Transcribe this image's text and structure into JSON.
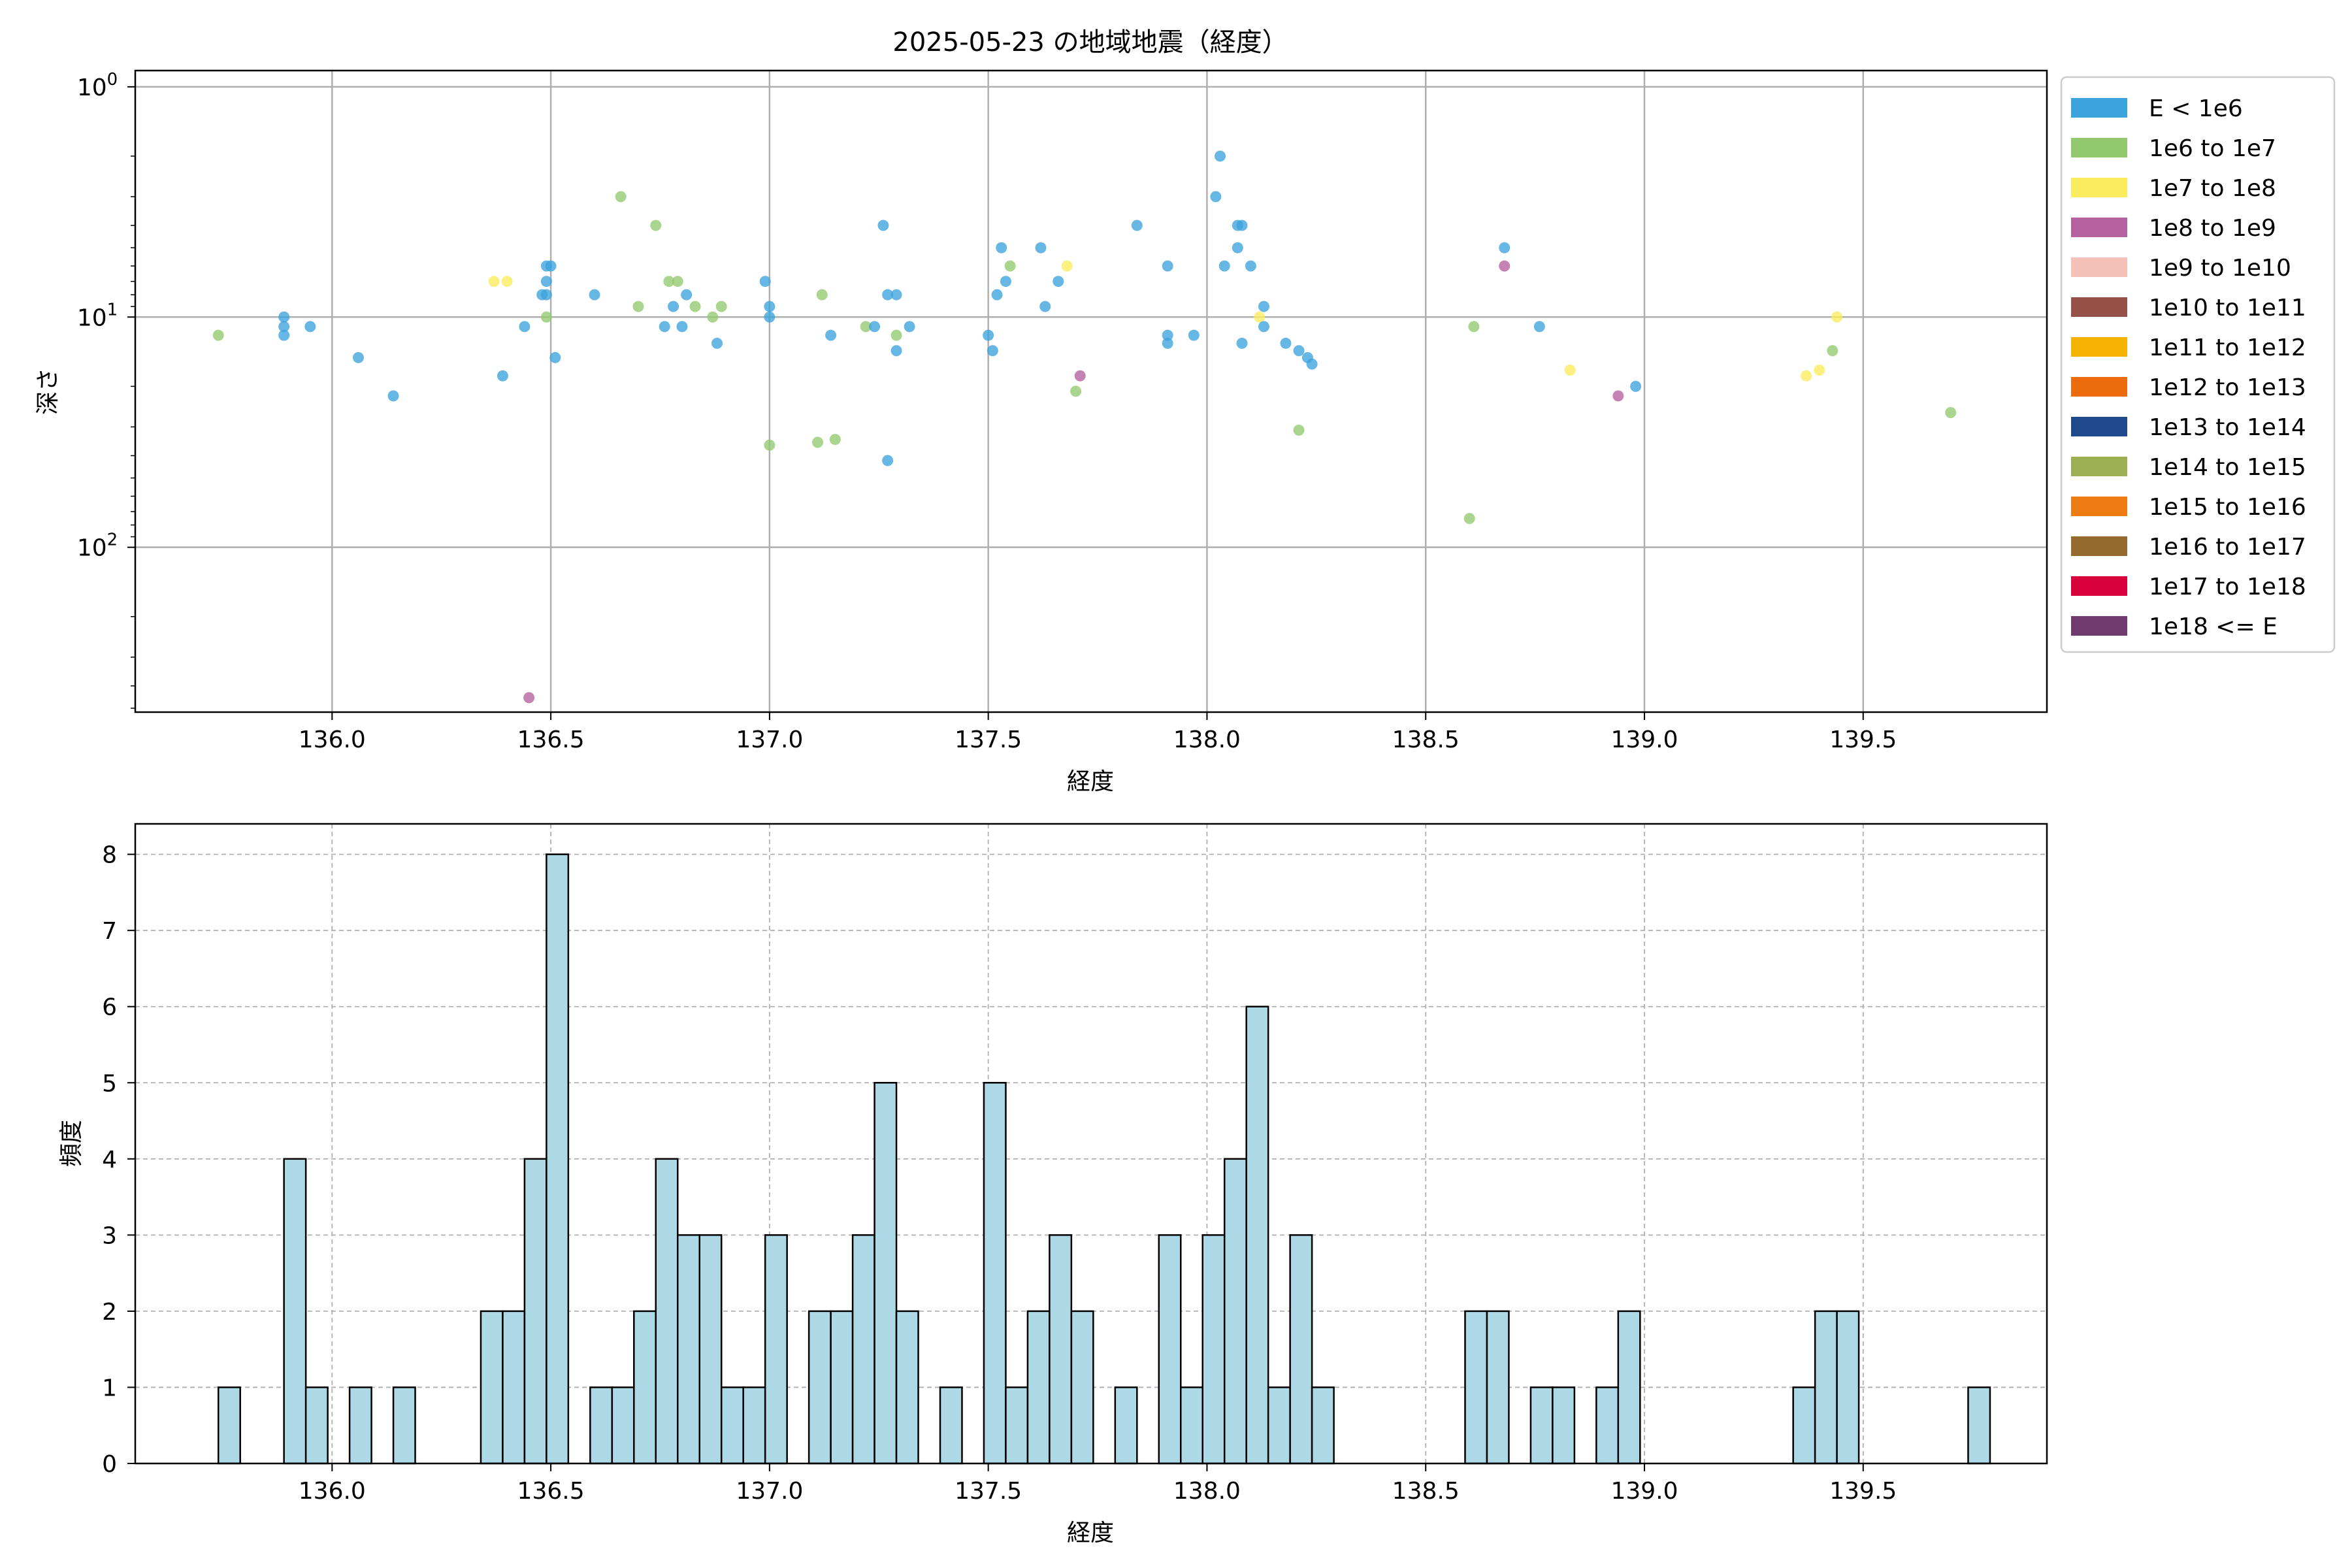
{
  "title": "2025-05-23 の地域地震（経度）",
  "chart_data": [
    {
      "type": "scatter",
      "xlabel": "経度",
      "ylabel": "深さ",
      "xlim": [
        135.55,
        139.92
      ],
      "y_scale": "log",
      "y_inverted": true,
      "ylim": [
        0.85,
        520
      ],
      "y_ticks": [
        {
          "value": 1,
          "base": "10",
          "exp": "0"
        },
        {
          "value": 10,
          "base": "10",
          "exp": "1"
        },
        {
          "value": 100,
          "base": "10",
          "exp": "2"
        }
      ],
      "x_ticks": [
        "136.0",
        "136.5",
        "137.0",
        "137.5",
        "138.0",
        "138.5",
        "139.0",
        "139.5"
      ],
      "grid": true,
      "legend_position": "outside-right",
      "legend": [
        {
          "label": "E < 1e6",
          "color": "#3ca3dc"
        },
        {
          "label": "1e6 to 1e7",
          "color": "#92c96e"
        },
        {
          "label": "1e7 to 1e8",
          "color": "#fbec5d"
        },
        {
          "label": "1e8 to 1e9",
          "color": "#b5609f"
        },
        {
          "label": "1e9 to 1e10",
          "color": "#f5c0b8"
        },
        {
          "label": "1e10 to 1e11",
          "color": "#955148"
        },
        {
          "label": "1e11 to 1e12",
          "color": "#f5b200"
        },
        {
          "label": "1e12 to 1e13",
          "color": "#ec6b0d"
        },
        {
          "label": "1e13 to 1e14",
          "color": "#1e4a8c"
        },
        {
          "label": "1e14 to 1e15",
          "color": "#9caf52"
        },
        {
          "label": "1e15 to 1e16",
          "color": "#ee7b12"
        },
        {
          "label": "1e16 to 1e17",
          "color": "#966a2e"
        },
        {
          "label": "1e17 to 1e18",
          "color": "#d9003e"
        },
        {
          "label": "1e18 <= E",
          "color": "#6f3b6e"
        }
      ],
      "points": [
        {
          "x": 135.74,
          "y": 12,
          "c": 1
        },
        {
          "x": 135.89,
          "y": 10,
          "c": 0
        },
        {
          "x": 135.89,
          "y": 11,
          "c": 0
        },
        {
          "x": 135.89,
          "y": 12,
          "c": 0
        },
        {
          "x": 135.95,
          "y": 11,
          "c": 0
        },
        {
          "x": 136.06,
          "y": 15,
          "c": 0
        },
        {
          "x": 136.14,
          "y": 22,
          "c": 0
        },
        {
          "x": 136.37,
          "y": 7,
          "c": 2
        },
        {
          "x": 136.4,
          "y": 7,
          "c": 2
        },
        {
          "x": 136.39,
          "y": 18,
          "c": 0
        },
        {
          "x": 136.44,
          "y": 11,
          "c": 0
        },
        {
          "x": 136.45,
          "y": 450,
          "c": 3
        },
        {
          "x": 136.48,
          "y": 8,
          "c": 0
        },
        {
          "x": 136.49,
          "y": 8,
          "c": 0
        },
        {
          "x": 136.49,
          "y": 7,
          "c": 0
        },
        {
          "x": 136.49,
          "y": 6,
          "c": 0
        },
        {
          "x": 136.5,
          "y": 6,
          "c": 0
        },
        {
          "x": 136.49,
          "y": 10,
          "c": 1
        },
        {
          "x": 136.51,
          "y": 15,
          "c": 0
        },
        {
          "x": 136.6,
          "y": 8,
          "c": 0
        },
        {
          "x": 136.66,
          "y": 3,
          "c": 1
        },
        {
          "x": 136.7,
          "y": 9,
          "c": 1
        },
        {
          "x": 136.74,
          "y": 4,
          "c": 1
        },
        {
          "x": 136.76,
          "y": 11,
          "c": 0
        },
        {
          "x": 136.77,
          "y": 7,
          "c": 1
        },
        {
          "x": 136.78,
          "y": 9,
          "c": 0
        },
        {
          "x": 136.79,
          "y": 7,
          "c": 1
        },
        {
          "x": 136.8,
          "y": 11,
          "c": 0
        },
        {
          "x": 136.81,
          "y": 8,
          "c": 0
        },
        {
          "x": 136.83,
          "y": 9,
          "c": 1
        },
        {
          "x": 136.87,
          "y": 10,
          "c": 1
        },
        {
          "x": 136.88,
          "y": 13,
          "c": 0
        },
        {
          "x": 136.89,
          "y": 9,
          "c": 1
        },
        {
          "x": 136.99,
          "y": 7,
          "c": 0
        },
        {
          "x": 137.0,
          "y": 9,
          "c": 0
        },
        {
          "x": 137.0,
          "y": 10,
          "c": 0
        },
        {
          "x": 137.0,
          "y": 36,
          "c": 1
        },
        {
          "x": 137.11,
          "y": 35,
          "c": 1
        },
        {
          "x": 137.12,
          "y": 8,
          "c": 1
        },
        {
          "x": 137.14,
          "y": 12,
          "c": 0
        },
        {
          "x": 137.15,
          "y": 34,
          "c": 1
        },
        {
          "x": 137.22,
          "y": 11,
          "c": 1
        },
        {
          "x": 137.24,
          "y": 11,
          "c": 0
        },
        {
          "x": 137.26,
          "y": 4,
          "c": 0
        },
        {
          "x": 137.27,
          "y": 8,
          "c": 0
        },
        {
          "x": 137.27,
          "y": 42,
          "c": 0
        },
        {
          "x": 137.29,
          "y": 8,
          "c": 0
        },
        {
          "x": 137.29,
          "y": 14,
          "c": 0
        },
        {
          "x": 137.29,
          "y": 12,
          "c": 1
        },
        {
          "x": 137.32,
          "y": 11,
          "c": 0
        },
        {
          "x": 137.5,
          "y": 12,
          "c": 0
        },
        {
          "x": 137.51,
          "y": 14,
          "c": 0
        },
        {
          "x": 137.52,
          "y": 8,
          "c": 0
        },
        {
          "x": 137.53,
          "y": 5,
          "c": 0
        },
        {
          "x": 137.54,
          "y": 7,
          "c": 0
        },
        {
          "x": 137.55,
          "y": 6,
          "c": 1
        },
        {
          "x": 137.62,
          "y": 5,
          "c": 0
        },
        {
          "x": 137.63,
          "y": 9,
          "c": 0
        },
        {
          "x": 137.66,
          "y": 7,
          "c": 0
        },
        {
          "x": 137.68,
          "y": 6,
          "c": 2
        },
        {
          "x": 137.7,
          "y": 21,
          "c": 1
        },
        {
          "x": 137.71,
          "y": 18,
          "c": 3
        },
        {
          "x": 137.84,
          "y": 4,
          "c": 0
        },
        {
          "x": 137.91,
          "y": 6,
          "c": 0
        },
        {
          "x": 137.91,
          "y": 12,
          "c": 0
        },
        {
          "x": 137.91,
          "y": 13,
          "c": 0
        },
        {
          "x": 137.97,
          "y": 12,
          "c": 0
        },
        {
          "x": 138.02,
          "y": 3,
          "c": 0
        },
        {
          "x": 138.03,
          "y": 2,
          "c": 0
        },
        {
          "x": 138.04,
          "y": 6,
          "c": 0
        },
        {
          "x": 138.07,
          "y": 4,
          "c": 0
        },
        {
          "x": 138.07,
          "y": 5,
          "c": 0
        },
        {
          "x": 138.08,
          "y": 4,
          "c": 0
        },
        {
          "x": 138.08,
          "y": 13,
          "c": 0
        },
        {
          "x": 138.1,
          "y": 6,
          "c": 0
        },
        {
          "x": 138.12,
          "y": 10,
          "c": 2
        },
        {
          "x": 138.13,
          "y": 11,
          "c": 0
        },
        {
          "x": 138.13,
          "y": 9,
          "c": 0
        },
        {
          "x": 138.18,
          "y": 13,
          "c": 0
        },
        {
          "x": 138.21,
          "y": 14,
          "c": 0
        },
        {
          "x": 138.21,
          "y": 31,
          "c": 1
        },
        {
          "x": 138.23,
          "y": 15,
          "c": 0
        },
        {
          "x": 138.24,
          "y": 16,
          "c": 0
        },
        {
          "x": 138.6,
          "y": 75,
          "c": 1
        },
        {
          "x": 138.61,
          "y": 11,
          "c": 1
        },
        {
          "x": 138.68,
          "y": 5,
          "c": 0
        },
        {
          "x": 138.68,
          "y": 6,
          "c": 3
        },
        {
          "x": 138.76,
          "y": 11,
          "c": 0
        },
        {
          "x": 138.83,
          "y": 17,
          "c": 2
        },
        {
          "x": 138.94,
          "y": 22,
          "c": 3
        },
        {
          "x": 138.98,
          "y": 20,
          "c": 0
        },
        {
          "x": 139.37,
          "y": 18,
          "c": 2
        },
        {
          "x": 139.4,
          "y": 17,
          "c": 2
        },
        {
          "x": 139.43,
          "y": 14,
          "c": 1
        },
        {
          "x": 139.44,
          "y": 10,
          "c": 2
        },
        {
          "x": 139.7,
          "y": 26,
          "c": 1
        }
      ]
    },
    {
      "type": "bar",
      "xlabel": "経度",
      "ylabel": "頻度",
      "xlim": [
        135.55,
        139.92
      ],
      "ylim": [
        0,
        8.4
      ],
      "bin_width": 0.05,
      "y_ticks": [
        "0",
        "1",
        "2",
        "3",
        "4",
        "5",
        "6",
        "7",
        "8"
      ],
      "x_ticks": [
        "136.0",
        "136.5",
        "137.0",
        "137.5",
        "138.0",
        "138.5",
        "139.0",
        "139.5"
      ],
      "grid": true,
      "bar_color": "#add8e6",
      "bins": [
        {
          "x0": 135.74,
          "count": 1
        },
        {
          "x0": 135.89,
          "count": 4
        },
        {
          "x0": 135.94,
          "count": 1
        },
        {
          "x0": 136.04,
          "count": 1
        },
        {
          "x0": 136.14,
          "count": 1
        },
        {
          "x0": 136.34,
          "count": 2
        },
        {
          "x0": 136.39,
          "count": 2
        },
        {
          "x0": 136.44,
          "count": 4
        },
        {
          "x0": 136.49,
          "count": 8
        },
        {
          "x0": 136.59,
          "count": 1
        },
        {
          "x0": 136.64,
          "count": 1
        },
        {
          "x0": 136.69,
          "count": 2
        },
        {
          "x0": 136.74,
          "count": 4
        },
        {
          "x0": 136.79,
          "count": 3
        },
        {
          "x0": 136.84,
          "count": 3
        },
        {
          "x0": 136.89,
          "count": 1
        },
        {
          "x0": 136.94,
          "count": 1
        },
        {
          "x0": 136.99,
          "count": 3
        },
        {
          "x0": 137.09,
          "count": 2
        },
        {
          "x0": 137.14,
          "count": 2
        },
        {
          "x0": 137.19,
          "count": 3
        },
        {
          "x0": 137.24,
          "count": 5
        },
        {
          "x0": 137.29,
          "count": 2
        },
        {
          "x0": 137.39,
          "count": 1
        },
        {
          "x0": 137.49,
          "count": 5
        },
        {
          "x0": 137.54,
          "count": 1
        },
        {
          "x0": 137.59,
          "count": 2
        },
        {
          "x0": 137.64,
          "count": 3
        },
        {
          "x0": 137.69,
          "count": 2
        },
        {
          "x0": 137.79,
          "count": 1
        },
        {
          "x0": 137.89,
          "count": 3
        },
        {
          "x0": 137.94,
          "count": 1
        },
        {
          "x0": 137.99,
          "count": 3
        },
        {
          "x0": 138.04,
          "count": 4
        },
        {
          "x0": 138.09,
          "count": 6
        },
        {
          "x0": 138.14,
          "count": 1
        },
        {
          "x0": 138.19,
          "count": 3
        },
        {
          "x0": 138.24,
          "count": 1
        },
        {
          "x0": 138.59,
          "count": 2
        },
        {
          "x0": 138.64,
          "count": 2
        },
        {
          "x0": 138.74,
          "count": 1
        },
        {
          "x0": 138.79,
          "count": 1
        },
        {
          "x0": 138.89,
          "count": 1
        },
        {
          "x0": 138.94,
          "count": 2
        },
        {
          "x0": 139.34,
          "count": 1
        },
        {
          "x0": 139.39,
          "count": 2
        },
        {
          "x0": 139.44,
          "count": 2
        },
        {
          "x0": 139.74,
          "count": 1
        }
      ]
    }
  ]
}
